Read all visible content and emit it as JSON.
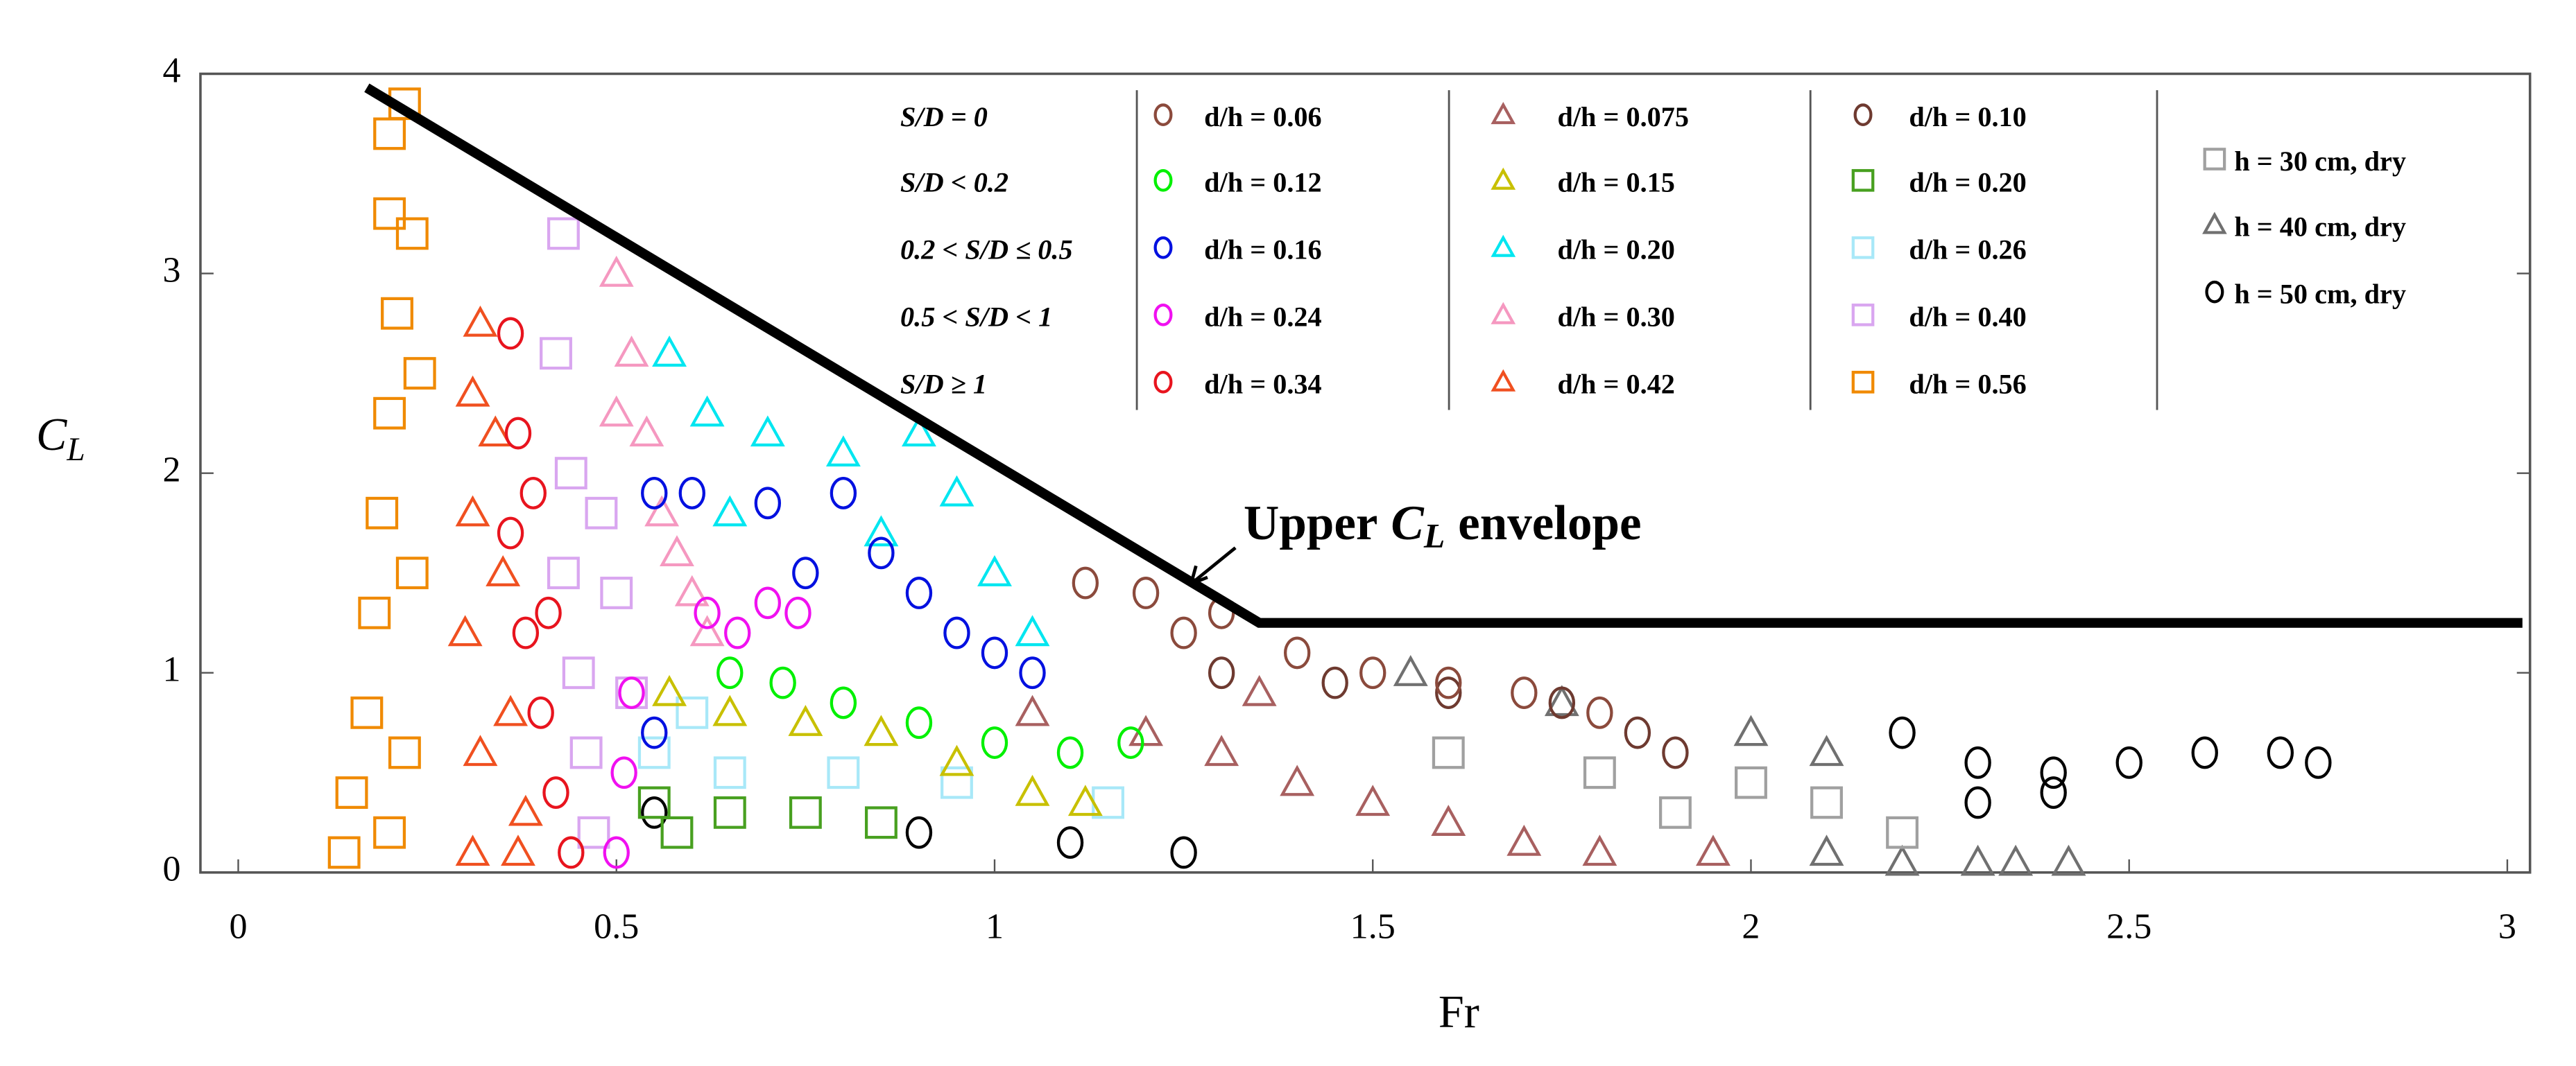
{
  "chart_data": {
    "type": "scatter",
    "x_label": "Fr",
    "y_label": {
      "main": "C",
      "sub": "L"
    },
    "xlim": [
      -0.05,
      3.03
    ],
    "ylim": [
      0,
      4
    ],
    "xticks": [
      0,
      0.5,
      1,
      1.5,
      2,
      2.5,
      3
    ],
    "yticks": [
      0,
      1,
      2,
      3,
      4
    ],
    "annotation": {
      "before": "Upper",
      "symbol": "C",
      "sub": "L",
      "after": "envelope"
    },
    "envelope": {
      "x": [
        0.17,
        1.35,
        3.02
      ],
      "y": [
        3.93,
        1.25,
        1.25
      ],
      "color": "#000000"
    },
    "group_labels": [
      "S/D = 0",
      "S/D < 0.2",
      "0.2 < S/D ≤ 0.5",
      "0.5 < S/D < 1",
      "S/D ≥ 1"
    ],
    "series": [
      {
        "name": "d/h = 0.06",
        "marker": "circle",
        "color": "#8b4a3c",
        "x": [
          1.12,
          1.2,
          1.3,
          1.25,
          1.4,
          1.5,
          1.6,
          1.7,
          1.8
        ],
        "y": [
          1.45,
          1.4,
          1.3,
          1.2,
          1.1,
          1.0,
          0.95,
          0.9,
          0.8
        ]
      },
      {
        "name": "d/h = 0.12",
        "marker": "circle",
        "color": "#00f000",
        "x": [
          0.65,
          0.72,
          0.8,
          0.9,
          1.0,
          1.1,
          1.18
        ],
        "y": [
          1.0,
          0.95,
          0.85,
          0.75,
          0.65,
          0.6,
          0.65
        ]
      },
      {
        "name": "d/h = 0.16",
        "marker": "circle",
        "color": "#0010e0",
        "x": [
          0.55,
          0.6,
          0.7,
          0.8,
          0.85,
          0.9,
          0.95,
          1.0,
          1.05,
          0.55,
          0.75
        ],
        "y": [
          1.9,
          1.9,
          1.85,
          1.9,
          1.6,
          1.4,
          1.2,
          1.1,
          1.0,
          0.7,
          1.5
        ]
      },
      {
        "name": "d/h = 0.24",
        "marker": "circle",
        "color": "#f010f0",
        "x": [
          0.5,
          0.51,
          0.62,
          0.66,
          0.7,
          0.74,
          0.52
        ],
        "y": [
          0.1,
          0.5,
          1.3,
          1.2,
          1.35,
          1.3,
          0.9
        ]
      },
      {
        "name": "d/h = 0.34",
        "marker": "circle",
        "color": "#e8141e",
        "x": [
          0.36,
          0.37,
          0.36,
          0.38,
          0.4,
          0.42,
          0.44,
          0.39,
          0.41
        ],
        "y": [
          2.7,
          2.2,
          1.7,
          1.2,
          0.8,
          0.4,
          0.1,
          1.9,
          1.3
        ]
      },
      {
        "name": "d/h = 0.075",
        "marker": "triangle",
        "color": "#a86060",
        "x": [
          1.05,
          1.2,
          1.3,
          1.4,
          1.5,
          1.6,
          1.7,
          1.8,
          1.95,
          1.35
        ],
        "y": [
          0.8,
          0.7,
          0.6,
          0.45,
          0.35,
          0.25,
          0.15,
          0.1,
          0.1,
          0.9
        ]
      },
      {
        "name": "d/h = 0.15",
        "marker": "triangle",
        "color": "#c8c000",
        "x": [
          0.57,
          0.65,
          0.75,
          0.85,
          0.95,
          1.05,
          1.12
        ],
        "y": [
          0.9,
          0.8,
          0.75,
          0.7,
          0.55,
          0.4,
          0.35
        ]
      },
      {
        "name": "d/h = 0.20",
        "marker": "triangle",
        "color": "#00e6f0",
        "x": [
          0.57,
          0.62,
          0.7,
          0.8,
          0.9,
          0.95,
          1.0,
          1.05,
          0.65,
          0.85
        ],
        "y": [
          2.6,
          2.3,
          2.2,
          2.1,
          2.2,
          1.9,
          1.5,
          1.2,
          1.8,
          1.7
        ]
      },
      {
        "name": "d/h = 0.30",
        "marker": "triangle",
        "color": "#f598c0",
        "x": [
          0.5,
          0.52,
          0.54,
          0.56,
          0.58,
          0.6,
          0.62,
          0.5
        ],
        "y": [
          3.0,
          2.6,
          2.2,
          1.8,
          1.6,
          1.4,
          1.2,
          2.3
        ]
      },
      {
        "name": "d/h = 0.42",
        "marker": "triangle",
        "color": "#f05020",
        "x": [
          0.31,
          0.32,
          0.3,
          0.31,
          0.31,
          0.32,
          0.34,
          0.35,
          0.36,
          0.38,
          0.37
        ],
        "y": [
          0.1,
          0.6,
          1.2,
          1.8,
          2.4,
          2.75,
          2.2,
          1.5,
          0.8,
          0.3,
          0.1
        ]
      },
      {
        "name": "d/h = 0.10",
        "marker": "circle",
        "color": "#6e3a30",
        "x": [
          1.3,
          1.45,
          1.6,
          1.75,
          1.85,
          1.9
        ],
        "y": [
          1.0,
          0.95,
          0.9,
          0.85,
          0.7,
          0.6
        ]
      },
      {
        "name": "d/h = 0.20",
        "marker": "square",
        "color": "#48a020",
        "x": [
          0.55,
          0.65,
          0.75,
          0.85,
          0.58
        ],
        "y": [
          0.35,
          0.3,
          0.3,
          0.25,
          0.2
        ]
      },
      {
        "name": "d/h = 0.26",
        "marker": "square",
        "color": "#a8e8f8",
        "x": [
          0.55,
          0.65,
          0.8,
          0.95,
          1.15,
          0.6
        ],
        "y": [
          0.6,
          0.5,
          0.5,
          0.45,
          0.35,
          0.8
        ]
      },
      {
        "name": "d/h = 0.40",
        "marker": "square",
        "color": "#d9a6f0",
        "x": [
          0.43,
          0.42,
          0.44,
          0.43,
          0.45,
          0.46,
          0.47,
          0.5,
          0.52,
          0.48
        ],
        "y": [
          3.2,
          2.6,
          2.0,
          1.5,
          1.0,
          0.6,
          0.2,
          1.4,
          0.9,
          1.8
        ]
      },
      {
        "name": "d/h = 0.56",
        "marker": "square",
        "color": "#f08a00",
        "x": [
          0.14,
          0.15,
          0.17,
          0.18,
          0.19,
          0.2,
          0.21,
          0.2,
          0.2,
          0.22,
          0.23,
          0.24,
          0.23,
          0.22,
          0.2
        ],
        "y": [
          0.1,
          0.4,
          0.8,
          1.3,
          1.8,
          2.3,
          2.8,
          3.3,
          3.7,
          3.85,
          3.2,
          2.5,
          1.5,
          0.6,
          0.2
        ]
      },
      {
        "name": "h = 30 cm, dry",
        "marker": "square",
        "color": "#a0a0a0",
        "x": [
          1.6,
          1.8,
          2.0,
          2.1,
          1.9,
          2.2
        ],
        "y": [
          0.6,
          0.5,
          0.45,
          0.35,
          0.3,
          0.2
        ]
      },
      {
        "name": "h = 40 cm, dry",
        "marker": "triangle",
        "color": "#707070",
        "x": [
          1.55,
          1.75,
          2.0,
          2.1,
          2.2,
          2.3,
          2.35,
          2.42,
          2.1
        ],
        "y": [
          1.0,
          0.85,
          0.7,
          0.6,
          0.05,
          0.05,
          0.05,
          0.05,
          0.1
        ]
      },
      {
        "name": "h = 50 cm, dry",
        "marker": "circle",
        "color": "#000000",
        "x": [
          2.2,
          2.3,
          2.4,
          2.5,
          2.6,
          2.7,
          2.75,
          2.4,
          2.3,
          0.55,
          0.9,
          1.1,
          1.25
        ],
        "y": [
          0.7,
          0.55,
          0.5,
          0.55,
          0.6,
          0.6,
          0.55,
          0.4,
          0.35,
          0.3,
          0.2,
          0.15,
          0.1
        ]
      }
    ]
  }
}
